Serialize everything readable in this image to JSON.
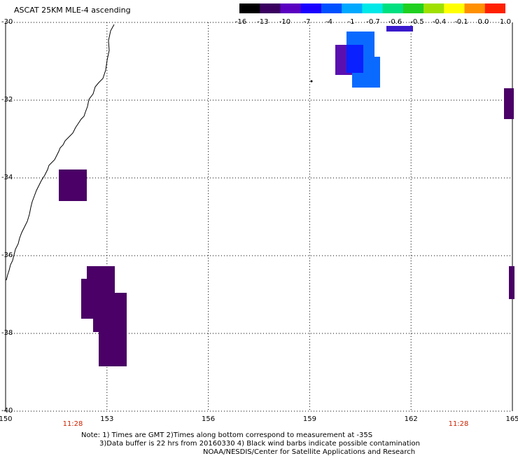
{
  "title": "ASCAT 25KM MLE-4 ascending",
  "colorbar": {
    "labels": [
      "-16",
      "-13",
      "-10",
      "-7",
      "-4",
      "-1",
      "-0.7",
      "-0.6",
      "-0.5",
      "-0.4",
      "-0.1",
      "0.0",
      "1.0"
    ],
    "colors": [
      "#000000",
      "#3a0060",
      "#5a00c0",
      "#1a00ff",
      "#0050ff",
      "#00a8ff",
      "#00e8e8",
      "#00e080",
      "#20d020",
      "#a0e000",
      "#ffff00",
      "#ff9000",
      "#ff2000"
    ]
  },
  "map": {
    "lon_range": [
      150,
      165
    ],
    "lat_range": [
      -40,
      -30
    ],
    "lon_ticks": [
      "150",
      "153",
      "156",
      "159",
      "162",
      "165"
    ],
    "lat_ticks": [
      "-30",
      "-32",
      "-34",
      "-36",
      "-38",
      "-40"
    ],
    "time_labels": [
      "11:28",
      "11:28"
    ],
    "cell_colors": {
      "purple": "#4a0066",
      "indigo": "#5a10b0",
      "violet": "#3a1acc",
      "blue": "#0a20ff",
      "sky": "#0a6aff"
    }
  },
  "notes": [
    "Note: 1) Times are GMT 2)Times along bottom correspond to measurement at -35S",
    "3)Data buffer is 22 hrs from 20160330 4) Black wind barbs indicate possible contamination",
    "NOAA/NESDIS/Center for Satellite Applications and Research"
  ]
}
